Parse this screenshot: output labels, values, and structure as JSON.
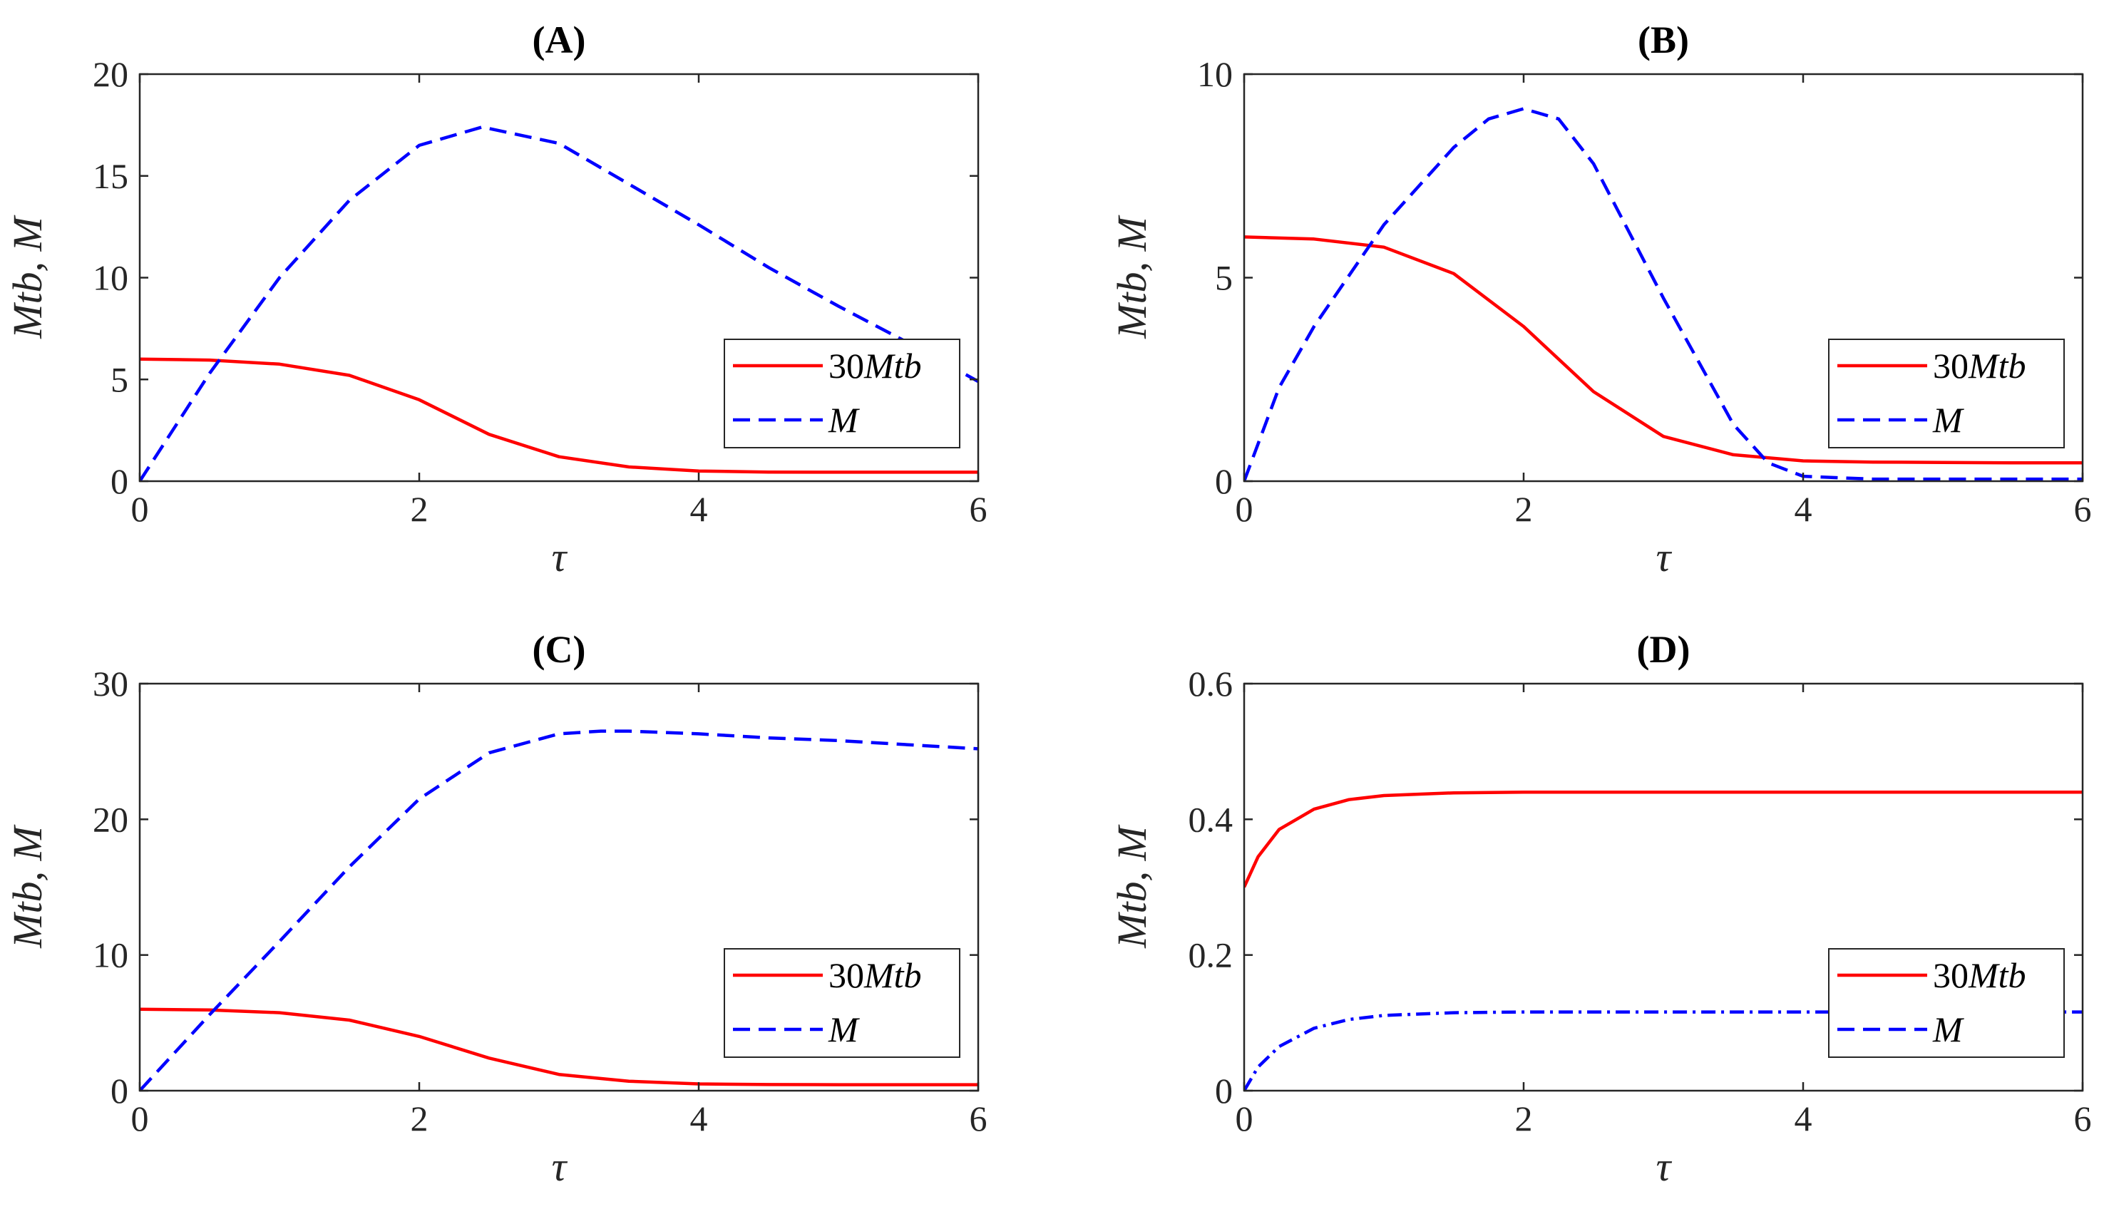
{
  "chart_data": [
    {
      "type": "line",
      "title": "(A)",
      "xlabel": "τ",
      "ylabel": "Mtb,  M",
      "xlim": [
        0,
        6
      ],
      "ylim": [
        0,
        20
      ],
      "xticks": [
        0,
        2,
        4,
        6
      ],
      "yticks": [
        0,
        5,
        10,
        15,
        20
      ],
      "legend_position": "lower-right",
      "series": [
        {
          "name": "30Mtb",
          "color": "#ff0000",
          "style": "solid",
          "x": [
            0,
            0.5,
            1,
            1.5,
            2,
            2.5,
            3,
            3.5,
            4,
            4.5,
            5,
            5.5,
            6
          ],
          "y": [
            6.0,
            5.95,
            5.75,
            5.2,
            4.0,
            2.3,
            1.2,
            0.7,
            0.5,
            0.45,
            0.44,
            0.44,
            0.44
          ]
        },
        {
          "name": "M",
          "color": "#0000ff",
          "style": "dashed",
          "x": [
            0,
            0.5,
            1,
            1.5,
            2,
            2.45,
            3,
            3.5,
            4,
            4.5,
            5,
            5.5,
            6
          ],
          "y": [
            0,
            5.3,
            10.0,
            13.8,
            16.5,
            17.4,
            16.6,
            14.6,
            12.6,
            10.5,
            8.6,
            6.8,
            4.9
          ]
        }
      ]
    },
    {
      "type": "line",
      "title": "(B)",
      "xlabel": "τ",
      "ylabel": "Mtb,  M",
      "xlim": [
        0,
        6
      ],
      "ylim": [
        0,
        10
      ],
      "xticks": [
        0,
        2,
        4,
        6
      ],
      "yticks": [
        0,
        5,
        10
      ],
      "legend_position": "lower-right",
      "series": [
        {
          "name": "30Mtb",
          "color": "#ff0000",
          "style": "solid",
          "x": [
            0,
            0.5,
            1,
            1.5,
            2,
            2.5,
            3,
            3.5,
            4,
            4.5,
            5,
            5.5,
            6
          ],
          "y": [
            6.0,
            5.95,
            5.75,
            5.1,
            3.8,
            2.2,
            1.1,
            0.65,
            0.5,
            0.47,
            0.46,
            0.45,
            0.45
          ]
        },
        {
          "name": "M",
          "color": "#0000ff",
          "style": "dashed",
          "x": [
            0,
            0.25,
            0.5,
            1,
            1.5,
            1.75,
            2,
            2.25,
            2.5,
            3,
            3.5,
            3.75,
            4,
            4.5,
            5,
            5.5,
            6
          ],
          "y": [
            0,
            2.3,
            3.8,
            6.3,
            8.2,
            8.9,
            9.15,
            8.9,
            7.8,
            4.5,
            1.4,
            0.45,
            0.12,
            0.05,
            0.05,
            0.05,
            0.05
          ]
        }
      ]
    },
    {
      "type": "line",
      "title": "(C)",
      "xlabel": "τ",
      "ylabel": "Mtb,  M",
      "xlim": [
        0,
        6
      ],
      "ylim": [
        0,
        30
      ],
      "xticks": [
        0,
        2,
        4,
        6
      ],
      "yticks": [
        0,
        10,
        20,
        30
      ],
      "legend_position": "lower-right",
      "series": [
        {
          "name": "30Mtb",
          "color": "#ff0000",
          "style": "solid",
          "x": [
            0,
            0.5,
            1,
            1.5,
            2,
            2.5,
            3,
            3.5,
            4,
            4.5,
            5,
            5.5,
            6
          ],
          "y": [
            6.0,
            5.95,
            5.75,
            5.2,
            4.0,
            2.4,
            1.2,
            0.7,
            0.5,
            0.45,
            0.44,
            0.44,
            0.44
          ]
        },
        {
          "name": "M",
          "color": "#0000ff",
          "style": "dashed",
          "x": [
            0,
            0.5,
            1,
            1.5,
            2,
            2.5,
            3,
            3.3,
            3.5,
            4,
            4.5,
            5,
            5.5,
            6
          ],
          "y": [
            0,
            5.6,
            11.0,
            16.5,
            21.5,
            24.9,
            26.3,
            26.5,
            26.5,
            26.3,
            26.0,
            25.8,
            25.5,
            25.2
          ]
        }
      ]
    },
    {
      "type": "line",
      "title": "(D)",
      "xlabel": "τ",
      "ylabel": "Mtb,  M",
      "xlim": [
        0,
        6
      ],
      "ylim": [
        0,
        0.6
      ],
      "xticks": [
        0,
        2,
        4,
        6
      ],
      "yticks": [
        0,
        0.2,
        0.4,
        0.6
      ],
      "legend_position": "lower-right",
      "series": [
        {
          "name": "30Mtb",
          "color": "#ff0000",
          "style": "solid",
          "x": [
            0,
            0.1,
            0.25,
            0.5,
            0.75,
            1,
            1.5,
            2,
            3,
            4,
            5,
            6
          ],
          "y": [
            0.3,
            0.345,
            0.385,
            0.415,
            0.429,
            0.435,
            0.439,
            0.44,
            0.44,
            0.44,
            0.44,
            0.44
          ]
        },
        {
          "name": "M",
          "color": "#0000ff",
          "style": "dash-dot",
          "x": [
            0,
            0.1,
            0.25,
            0.5,
            0.75,
            1,
            1.5,
            2,
            3,
            4,
            5,
            6
          ],
          "y": [
            0.0,
            0.035,
            0.065,
            0.092,
            0.105,
            0.111,
            0.115,
            0.116,
            0.116,
            0.116,
            0.116,
            0.116
          ]
        }
      ]
    }
  ]
}
